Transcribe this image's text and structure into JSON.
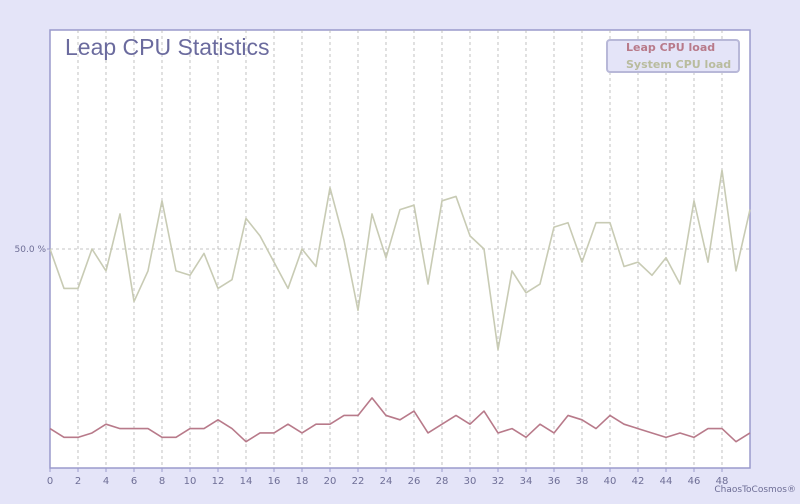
{
  "chart_data": {
    "type": "line",
    "title": "Leap CPU Statistics",
    "xlabel": "",
    "ylabel": "",
    "x": [
      0,
      1,
      2,
      3,
      4,
      5,
      6,
      7,
      8,
      9,
      10,
      11,
      12,
      13,
      14,
      15,
      16,
      17,
      18,
      19,
      20,
      21,
      22,
      23,
      24,
      25,
      26,
      27,
      28,
      29,
      30,
      31,
      32,
      33,
      34,
      35,
      36,
      37,
      38,
      39,
      40,
      41,
      42,
      43,
      44,
      45,
      46,
      47,
      48,
      49,
      50
    ],
    "x_ticks": [
      "0",
      "2",
      "4",
      "6",
      "8",
      "10",
      "12",
      "14",
      "16",
      "18",
      "20",
      "22",
      "24",
      "26",
      "28",
      "30",
      "32",
      "34",
      "36",
      "38",
      "40",
      "42",
      "44",
      "46",
      "48"
    ],
    "xlim": [
      0,
      50
    ],
    "ylim": [
      0,
      100
    ],
    "y_ticks": [
      {
        "value": 50,
        "label": "50.0 %"
      }
    ],
    "grid": {
      "vertical": true,
      "horizontal": "50% only",
      "style": "dashed"
    },
    "legend_position": "top-right",
    "series": [
      {
        "name": "Leap CPU load",
        "color": "#b87a8a",
        "values": [
          9,
          7,
          7,
          8,
          10,
          9,
          9,
          9,
          7,
          7,
          9,
          9,
          11,
          9,
          6,
          8,
          8,
          10,
          8,
          10,
          10,
          12,
          12,
          16,
          12,
          11,
          13,
          8,
          10,
          12,
          10,
          13,
          8,
          9,
          7,
          10,
          8,
          12,
          11,
          9,
          12,
          10,
          9,
          8,
          7,
          8,
          7,
          9,
          9,
          6,
          8
        ]
      },
      {
        "name": "System CPU load",
        "color": "#c8cbb4",
        "values": [
          50,
          41,
          41,
          50,
          45,
          58,
          38,
          45,
          61,
          45,
          44,
          49,
          41,
          43,
          57,
          53,
          47,
          41,
          50,
          46,
          64,
          52,
          36,
          58,
          48,
          59,
          60,
          42,
          61,
          62,
          53,
          50,
          27,
          45,
          40,
          42,
          55,
          56,
          47,
          56,
          56,
          46,
          47,
          44,
          48,
          42,
          61,
          47,
          68,
          45,
          59
        ]
      }
    ]
  },
  "credit": "ChaosToCosmos®",
  "colors": {
    "page_background": "#e4e4f8",
    "plot_background": "#ffffff",
    "plot_border": "#9a9acc",
    "title": "#6b6b9e",
    "grid": "#b4b4b4",
    "axis": "#9a9acc"
  }
}
